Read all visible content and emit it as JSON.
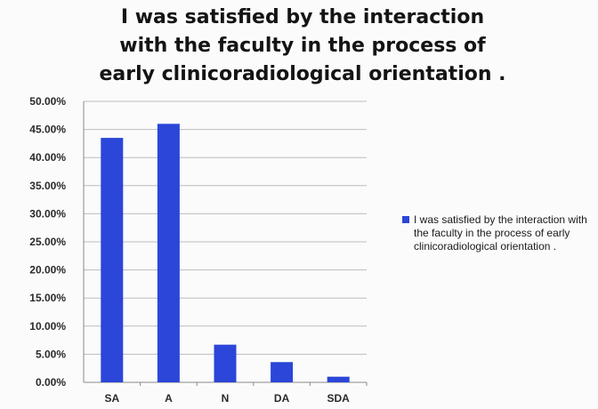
{
  "chart_data": {
    "type": "bar",
    "title_lines": [
      "I was  satisfied by the interaction",
      "with the faculty  in the process  of",
      "early clinicoradiological  orientation ."
    ],
    "categories": [
      "SA",
      "A",
      "N",
      "DA",
      "SDA"
    ],
    "series": [
      {
        "name": "I was  satisfied by the interaction with the faculty  in the process  of early clinicoradiological orientation .",
        "values": [
          43.5,
          46.0,
          6.7,
          3.6,
          1.0
        ]
      }
    ],
    "ylim": [
      0,
      50
    ],
    "yticks": [
      "0.00%",
      "5.00%",
      "10.00%",
      "15.00%",
      "20.00%",
      "25.00%",
      "30.00%",
      "35.00%",
      "40.00%",
      "45.00%",
      "50.00%"
    ],
    "xlabel": "",
    "ylabel": "",
    "grid": true,
    "legend_position": "right",
    "bar_color": "#2b46d8"
  }
}
